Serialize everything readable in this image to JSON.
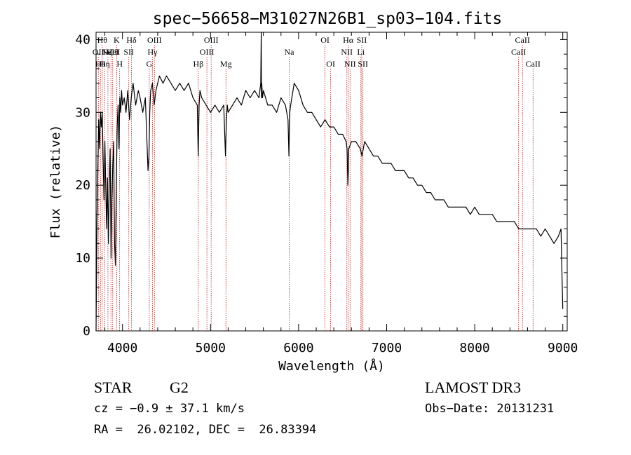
{
  "chart_data": {
    "type": "line",
    "title": "spec−56658−M31027N26B1_sp03−104.fits",
    "xlabel": "Wavelength (Å)",
    "ylabel": "Flux (relative)",
    "xlim": [
      3700,
      9050
    ],
    "ylim": [
      0,
      41
    ],
    "xticks": [
      4000,
      5000,
      6000,
      7000,
      8000,
      9000
    ],
    "xtick_labels": [
      "4000",
      "5000",
      "6000",
      "7000",
      "8000",
      "9000"
    ],
    "yticks": [
      0,
      10,
      20,
      30,
      40
    ],
    "ytick_labels": [
      "0",
      "10",
      "20",
      "30",
      "40"
    ],
    "grid": false,
    "series": [
      {
        "name": "flux",
        "x": [
          3700,
          3710,
          3720,
          3730,
          3740,
          3750,
          3760,
          3770,
          3780,
          3790,
          3800,
          3810,
          3820,
          3830,
          3840,
          3850,
          3860,
          3870,
          3880,
          3890,
          3900,
          3910,
          3920,
          3930,
          3940,
          3950,
          3960,
          3970,
          3980,
          3990,
          4000,
          4020,
          4040,
          4060,
          4080,
          4100,
          4120,
          4150,
          4180,
          4200,
          4230,
          4260,
          4290,
          4300,
          4310,
          4320,
          4340,
          4360,
          4380,
          4420,
          4460,
          4500,
          4550,
          4600,
          4650,
          4700,
          4750,
          4800,
          4850,
          4860,
          4870,
          4880,
          4900,
          4950,
          5000,
          5050,
          5100,
          5150,
          5170,
          5180,
          5190,
          5200,
          5250,
          5300,
          5350,
          5400,
          5450,
          5500,
          5550,
          5570,
          5576,
          5578,
          5580,
          5582,
          5590,
          5600,
          5650,
          5700,
          5750,
          5800,
          5850,
          5880,
          5890,
          5896,
          5900,
          5910,
          5950,
          6000,
          6050,
          6100,
          6150,
          6200,
          6250,
          6300,
          6350,
          6400,
          6450,
          6500,
          6540,
          6550,
          6556,
          6560,
          6565,
          6570,
          6600,
          6650,
          6700,
          6720,
          6750,
          6800,
          6850,
          6900,
          6950,
          7000,
          7050,
          7100,
          7150,
          7200,
          7250,
          7300,
          7350,
          7400,
          7450,
          7500,
          7550,
          7600,
          7650,
          7700,
          7750,
          7800,
          7850,
          7900,
          7950,
          8000,
          8050,
          8100,
          8150,
          8200,
          8250,
          8300,
          8350,
          8400,
          8450,
          8500,
          8550,
          8600,
          8650,
          8700,
          8750,
          8800,
          8850,
          8900,
          8950,
          8980,
          8990,
          9000
        ],
        "y": [
          0,
          15,
          22,
          29,
          25,
          30,
          28,
          30,
          24,
          18,
          26,
          20,
          14,
          21,
          12,
          20,
          25,
          10,
          18,
          23,
          26,
          12,
          9,
          20,
          28,
          31,
          25,
          32,
          30,
          33,
          31,
          32,
          30,
          33,
          29,
          32,
          34,
          31,
          33,
          32,
          30,
          32,
          22,
          24,
          30,
          33,
          34,
          31,
          33,
          35,
          34,
          35,
          34,
          33,
          34,
          33,
          34,
          32,
          31,
          24,
          31,
          33,
          32,
          31,
          30,
          31,
          30,
          31,
          24,
          29,
          31,
          30,
          31,
          32,
          31,
          33,
          32,
          33,
          32,
          34,
          41,
          32,
          33,
          34,
          32,
          33,
          31,
          31,
          30,
          32,
          31,
          29,
          24,
          28,
          30,
          31,
          34,
          33,
          31,
          30,
          30,
          29,
          28,
          29,
          28,
          28,
          27,
          27,
          26,
          25,
          22,
          20,
          22,
          25,
          26,
          26,
          25,
          24,
          26,
          25,
          24,
          24,
          23,
          23,
          23,
          22,
          22,
          22,
          21,
          21,
          20,
          20,
          19,
          19,
          18,
          18,
          18,
          17,
          17,
          17,
          17,
          17,
          16,
          17,
          16,
          16,
          16,
          16,
          15,
          15,
          15,
          15,
          15,
          14,
          14,
          14,
          14,
          14,
          13,
          14,
          13,
          12,
          13,
          14,
          8,
          3
        ]
      }
    ],
    "lines": [
      {
        "wl": 3726,
        "label": "OII",
        "row": 2
      },
      {
        "wl": 3750,
        "label": "Hh",
        "row": 3
      },
      {
        "wl": 3770,
        "label": "Hθ",
        "row": 1
      },
      {
        "wl": 3798,
        "label": "Hη",
        "row": 3
      },
      {
        "wl": 3835,
        "label": "Hζ",
        "row": 2
      },
      {
        "wl": 3869,
        "label": "NeIII",
        "row": 2
      },
      {
        "wl": 3889,
        "label": "HeI",
        "row": 2
      },
      {
        "wl": 3934,
        "label": "K",
        "row": 1
      },
      {
        "wl": 3968,
        "label": "H",
        "row": 3
      },
      {
        "wl": 4072,
        "label": "SII",
        "row": 2
      },
      {
        "wl": 4102,
        "label": "Hδ",
        "row": 1
      },
      {
        "wl": 4304,
        "label": "G",
        "row": 3
      },
      {
        "wl": 4341,
        "label": "Hγ",
        "row": 2
      },
      {
        "wl": 4363,
        "label": "OIII",
        "row": 1
      },
      {
        "wl": 4861,
        "label": "Hβ",
        "row": 3
      },
      {
        "wl": 4959,
        "label": "OIII",
        "row": 2
      },
      {
        "wl": 5007,
        "label": "OIII",
        "row": 1
      },
      {
        "wl": 5175,
        "label": "Mg",
        "row": 3
      },
      {
        "wl": 5893,
        "label": "Na",
        "row": 2
      },
      {
        "wl": 6300,
        "label": "OI",
        "row": 1
      },
      {
        "wl": 6364,
        "label": "OI",
        "row": 3
      },
      {
        "wl": 6548,
        "label": "NII",
        "row": 2
      },
      {
        "wl": 6563,
        "label": "Hα",
        "row": 1
      },
      {
        "wl": 6584,
        "label": "NII",
        "row": 3
      },
      {
        "wl": 6707,
        "label": "Li",
        "row": 2
      },
      {
        "wl": 6717,
        "label": "SII",
        "row": 1
      },
      {
        "wl": 6731,
        "label": "SII",
        "row": 3
      },
      {
        "wl": 8498,
        "label": "CaII",
        "row": 2
      },
      {
        "wl": 8542,
        "label": "CaII",
        "row": 1
      },
      {
        "wl": 8662,
        "label": "CaII",
        "row": 3
      }
    ]
  },
  "info": {
    "object_class": "STAR",
    "subclass": "G2",
    "redshift": "cz = −0.9 ± 37.1 km/s",
    "coords": "RA =  26.02102, DEC =  26.83394",
    "survey": "LAMOST DR3",
    "obs_date": "Obs−Date: 20131231"
  },
  "colors": {
    "axis": "#000000",
    "spectrum": "#000000",
    "line_marker": "#b22222",
    "background": "#ffffff"
  }
}
